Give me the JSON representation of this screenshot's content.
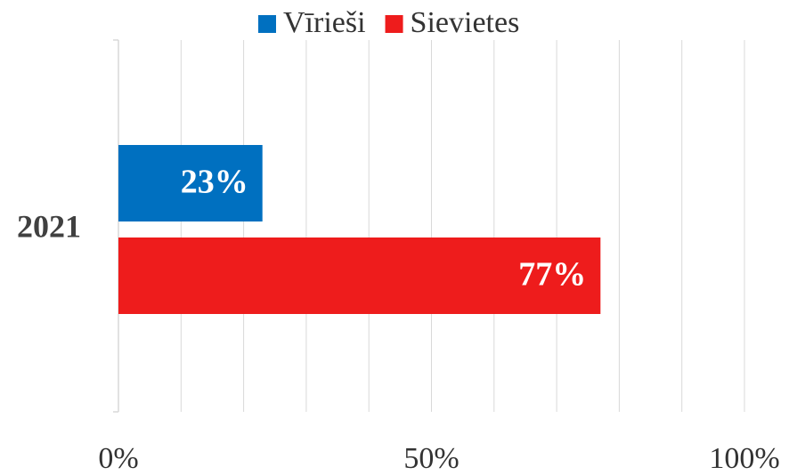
{
  "chart_data": {
    "type": "bar",
    "orientation": "horizontal",
    "categories": [
      "2021"
    ],
    "series": [
      {
        "name": "Vīrieši",
        "color": "#0070c0",
        "values": [
          23
        ],
        "value_labels": [
          "23%"
        ]
      },
      {
        "name": "Sievietes",
        "color": "#ee1c1c",
        "values": [
          77
        ],
        "value_labels": [
          "77%"
        ]
      }
    ],
    "xlim": [
      0,
      100
    ],
    "xticks": [
      {
        "value": 0,
        "label": "0%"
      },
      {
        "value": 50,
        "label": "50%"
      },
      {
        "value": 100,
        "label": "100%"
      }
    ],
    "minor_xticks": [
      10,
      20,
      30,
      40,
      60,
      70,
      80,
      90
    ],
    "grid": true,
    "legend": "top"
  }
}
